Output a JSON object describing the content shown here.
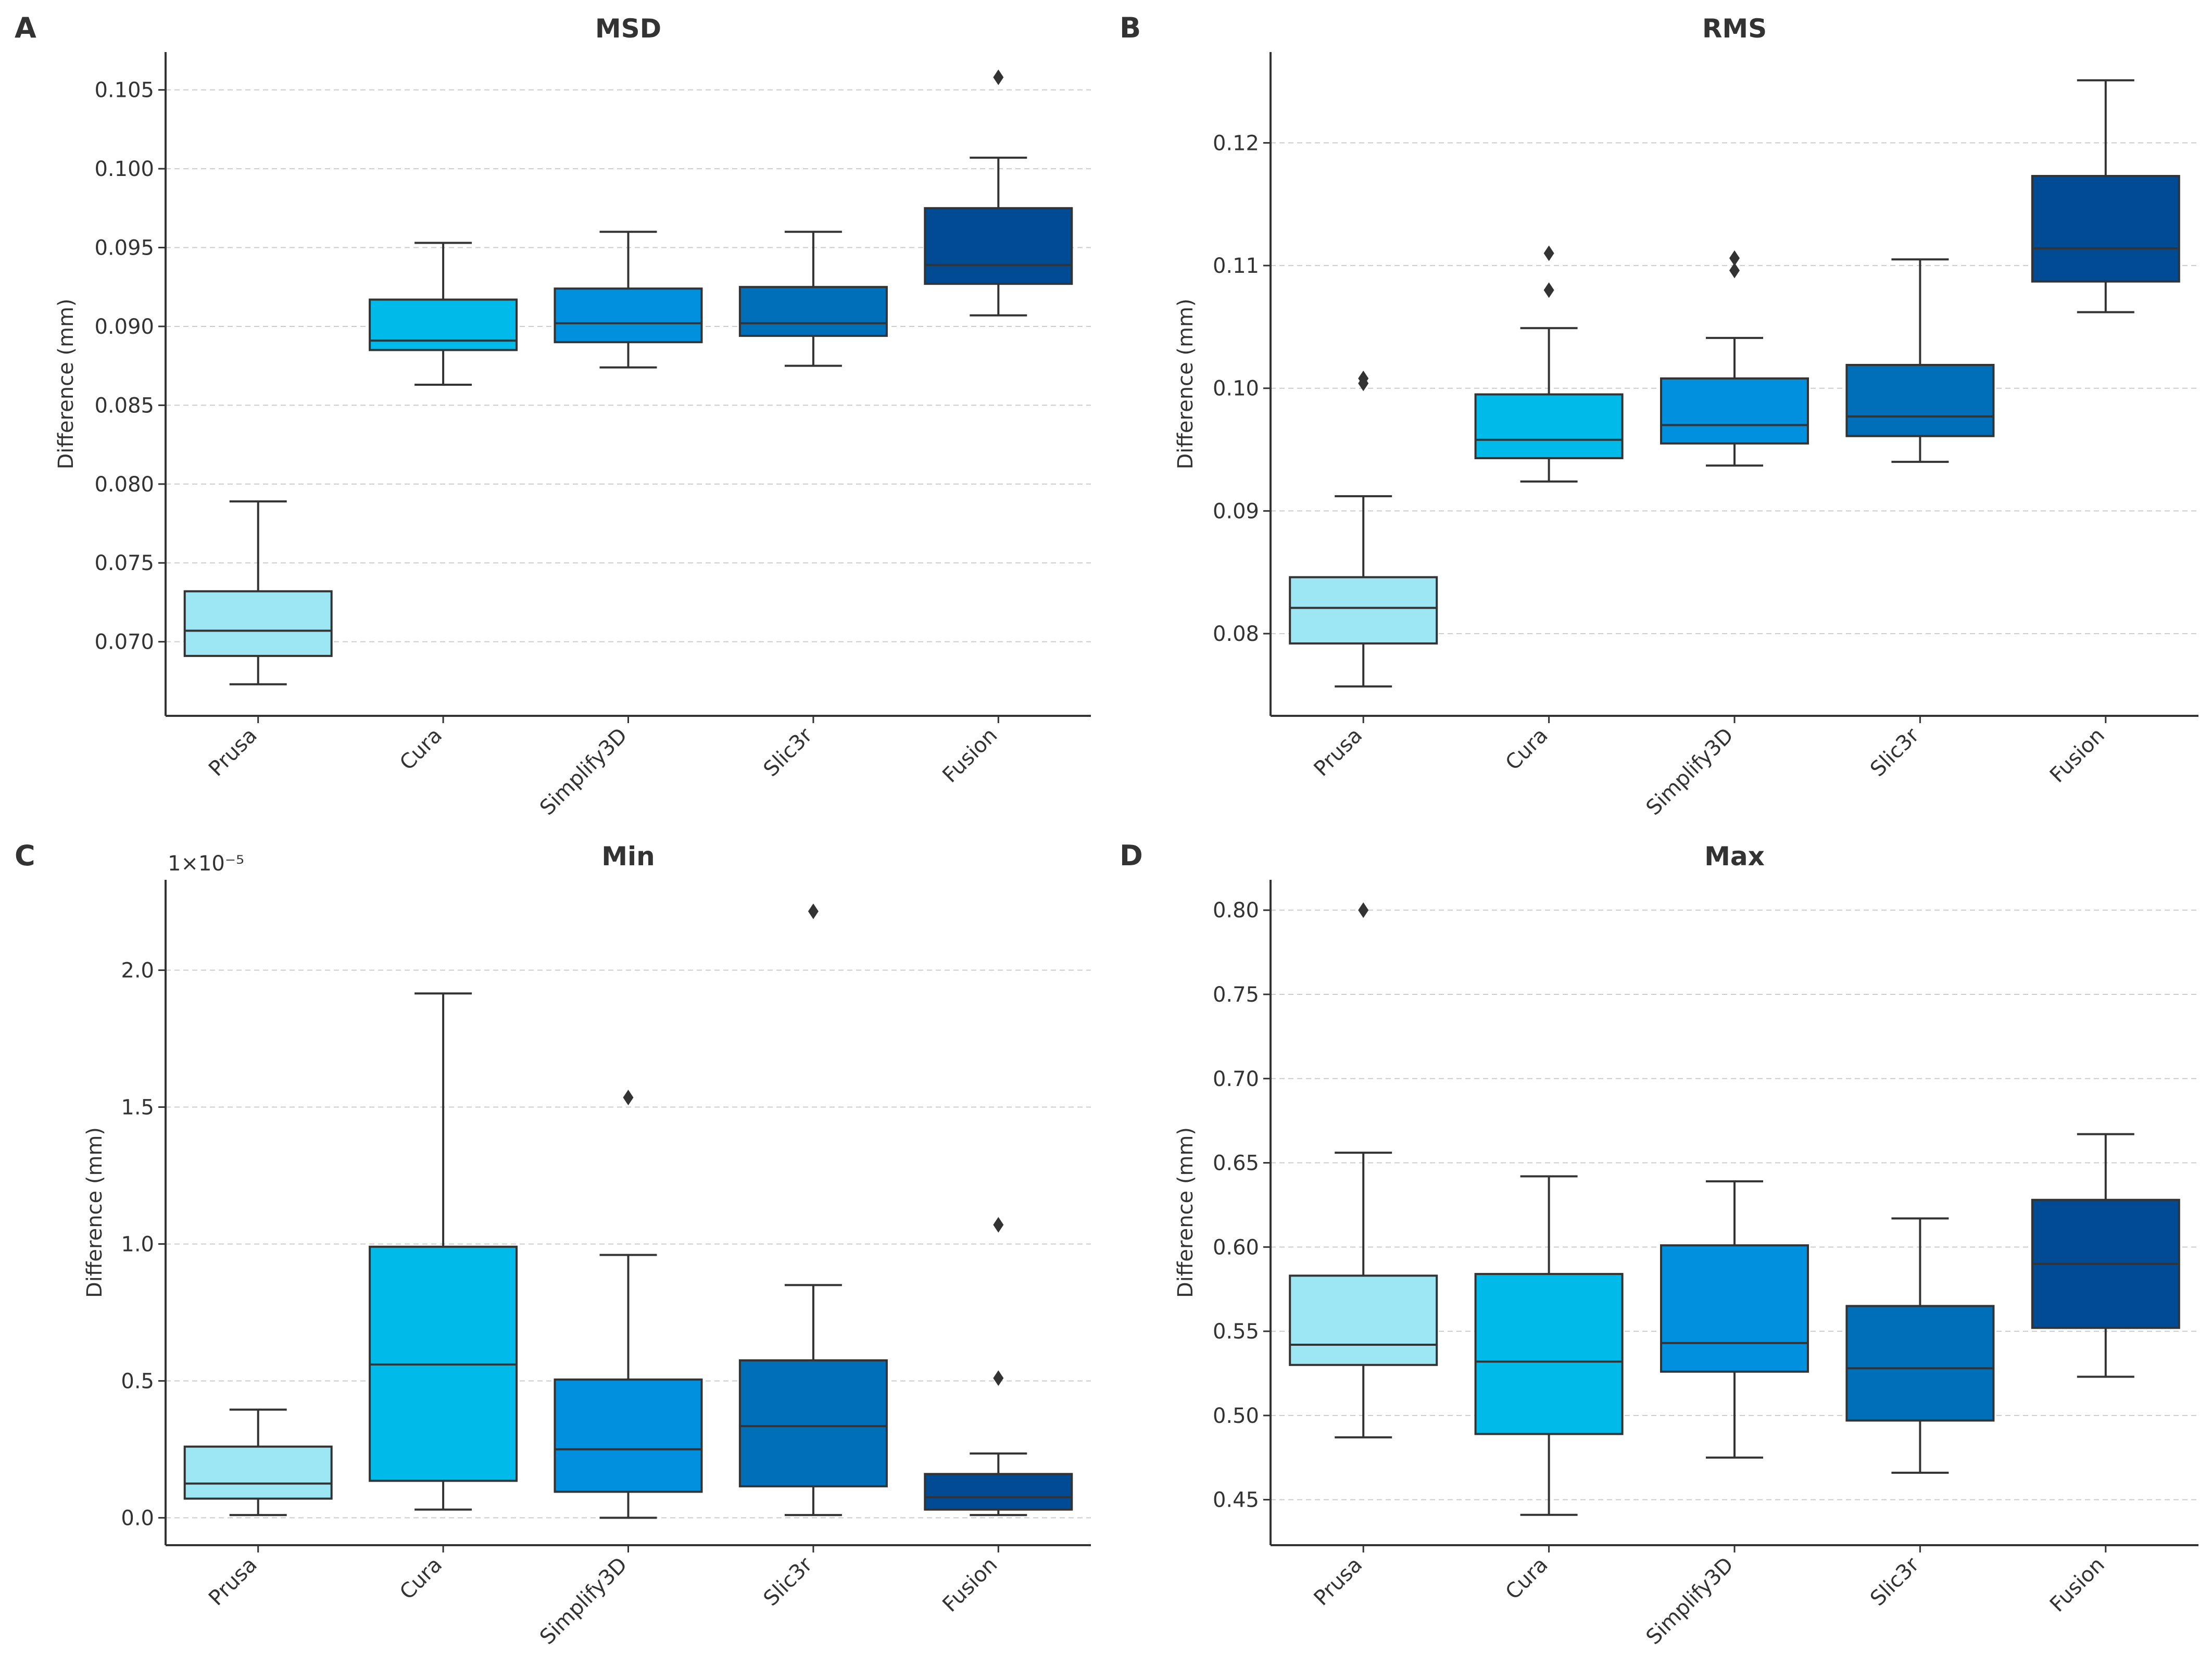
{
  "figure": {
    "colors": {
      "Prusa": "#9de7f5",
      "Cura": "#00bbe9",
      "Simplify3D": "#0090de",
      "Slic3r": "#006fba",
      "Fusion": "#004b94",
      "line": "#333333",
      "grid": "#cccccc"
    }
  },
  "chart_data": [
    {
      "letter": "A",
      "type": "box",
      "title": "MSD",
      "xlabel": "",
      "ylabel": "Difference (mm)",
      "ylim": [
        0.0653,
        0.1074
      ],
      "yticks": [
        0.07,
        0.075,
        0.08,
        0.085,
        0.09,
        0.095,
        0.1,
        0.105
      ],
      "ytick_labels": [
        "0.070",
        "0.075",
        "0.080",
        "0.085",
        "0.090",
        "0.095",
        "0.100",
        "0.105"
      ],
      "offset_label": "",
      "grid": "y-dashed",
      "categories": [
        "Prusa",
        "Cura",
        "Simplify3D",
        "Slic3r",
        "Fusion"
      ],
      "boxes": [
        {
          "whislo": 0.0673,
          "q1": 0.0691,
          "med": 0.0707,
          "q3": 0.0732,
          "whishi": 0.0789,
          "fliers": []
        },
        {
          "whislo": 0.0863,
          "q1": 0.0885,
          "med": 0.0891,
          "q3": 0.0917,
          "whishi": 0.0953,
          "fliers": []
        },
        {
          "whislo": 0.0874,
          "q1": 0.089,
          "med": 0.0902,
          "q3": 0.0924,
          "whishi": 0.096,
          "fliers": []
        },
        {
          "whislo": 0.0875,
          "q1": 0.0894,
          "med": 0.0902,
          "q3": 0.0925,
          "whishi": 0.096,
          "fliers": []
        },
        {
          "whislo": 0.0907,
          "q1": 0.0927,
          "med": 0.0939,
          "q3": 0.0975,
          "whishi": 0.1007,
          "fliers": [
            0.1058
          ]
        }
      ]
    },
    {
      "letter": "B",
      "type": "box",
      "title": "RMS",
      "xlabel": "",
      "ylabel": "Difference (mm)",
      "ylim": [
        0.0733,
        0.1274
      ],
      "yticks": [
        0.08,
        0.09,
        0.1,
        0.11,
        0.12
      ],
      "ytick_labels": [
        "0.08",
        "0.09",
        "0.10",
        "0.11",
        "0.12"
      ],
      "offset_label": "",
      "grid": "y-dashed",
      "categories": [
        "Prusa",
        "Cura",
        "Simplify3D",
        "Slic3r",
        "Fusion"
      ],
      "boxes": [
        {
          "whislo": 0.0757,
          "q1": 0.0792,
          "med": 0.0821,
          "q3": 0.0846,
          "whishi": 0.0912,
          "fliers": [
            0.1004,
            0.1008
          ]
        },
        {
          "whislo": 0.0924,
          "q1": 0.0943,
          "med": 0.0958,
          "q3": 0.0995,
          "whishi": 0.1049,
          "fliers": [
            0.108,
            0.111
          ]
        },
        {
          "whislo": 0.0937,
          "q1": 0.0955,
          "med": 0.097,
          "q3": 0.1008,
          "whishi": 0.1041,
          "fliers": [
            0.1096,
            0.1106
          ]
        },
        {
          "whislo": 0.094,
          "q1": 0.0961,
          "med": 0.0977,
          "q3": 0.1019,
          "whishi": 0.1105,
          "fliers": []
        },
        {
          "whislo": 0.1062,
          "q1": 0.1087,
          "med": 0.1114,
          "q3": 0.1173,
          "whishi": 0.1251,
          "fliers": []
        }
      ]
    },
    {
      "letter": "C",
      "type": "box",
      "title": "Min",
      "xlabel": "",
      "ylabel": "Difference (mm)",
      "ylim": [
        -0.1,
        2.33
      ],
      "yticks": [
        0.0,
        0.5,
        1.0,
        1.5,
        2.0
      ],
      "ytick_labels": [
        "0.0",
        "0.5",
        "1.0",
        "1.5",
        "2.0"
      ],
      "offset_label": "1×10⁻⁵",
      "grid": "y-dashed",
      "categories": [
        "Prusa",
        "Cura",
        "Simplify3D",
        "Slic3r",
        "Fusion"
      ],
      "boxes": [
        {
          "whislo": 0.01,
          "q1": 0.07,
          "med": 0.125,
          "q3": 0.26,
          "whishi": 0.395,
          "fliers": []
        },
        {
          "whislo": 0.03,
          "q1": 0.135,
          "med": 0.56,
          "q3": 0.99,
          "whishi": 1.915,
          "fliers": []
        },
        {
          "whislo": 0.0,
          "q1": 0.095,
          "med": 0.25,
          "q3": 0.505,
          "whishi": 0.96,
          "fliers": [
            1.535
          ]
        },
        {
          "whislo": 0.01,
          "q1": 0.115,
          "med": 0.335,
          "q3": 0.575,
          "whishi": 0.85,
          "fliers": [
            2.215
          ]
        },
        {
          "whislo": 0.01,
          "q1": 0.03,
          "med": 0.075,
          "q3": 0.16,
          "whishi": 0.235,
          "fliers": [
            0.51,
            1.07
          ]
        }
      ]
    },
    {
      "letter": "D",
      "type": "box",
      "title": "Max",
      "xlabel": "",
      "ylabel": "Difference (mm)",
      "ylim": [
        0.423,
        0.818
      ],
      "yticks": [
        0.45,
        0.5,
        0.55,
        0.6,
        0.65,
        0.7,
        0.75,
        0.8
      ],
      "ytick_labels": [
        "0.45",
        "0.50",
        "0.55",
        "0.60",
        "0.65",
        "0.70",
        "0.75",
        "0.80"
      ],
      "offset_label": "",
      "grid": "y-dashed",
      "categories": [
        "Prusa",
        "Cura",
        "Simplify3D",
        "Slic3r",
        "Fusion"
      ],
      "boxes": [
        {
          "whislo": 0.487,
          "q1": 0.53,
          "med": 0.542,
          "q3": 0.583,
          "whishi": 0.656,
          "fliers": [
            0.8
          ]
        },
        {
          "whislo": 0.441,
          "q1": 0.489,
          "med": 0.532,
          "q3": 0.584,
          "whishi": 0.642,
          "fliers": []
        },
        {
          "whislo": 0.475,
          "q1": 0.526,
          "med": 0.543,
          "q3": 0.601,
          "whishi": 0.639,
          "fliers": []
        },
        {
          "whislo": 0.466,
          "q1": 0.497,
          "med": 0.528,
          "q3": 0.565,
          "whishi": 0.617,
          "fliers": []
        },
        {
          "whislo": 0.523,
          "q1": 0.552,
          "med": 0.59,
          "q3": 0.628,
          "whishi": 0.667,
          "fliers": []
        }
      ]
    }
  ]
}
